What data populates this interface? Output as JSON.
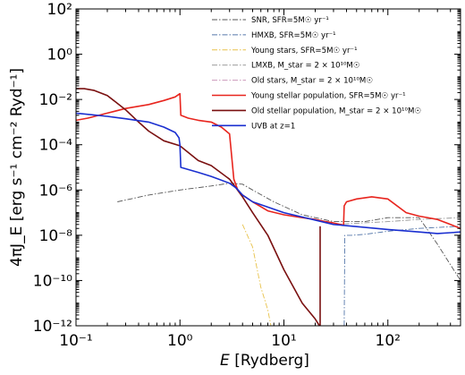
{
  "chart_data": {
    "type": "line",
    "xlabel_main": "E",
    "xlabel_unit": "[Rydberg]",
    "ylabel": "4πJ_E [erg s⁻¹ cm⁻² Ryd⁻¹]",
    "xscale": "log",
    "yscale": "log",
    "xlim": [
      0.1,
      500
    ],
    "ylim": [
      1e-12,
      100
    ],
    "grid": false,
    "legend_position": "top-right",
    "x_tick_labels": [
      {
        "value": 0.1,
        "label": "10⁻¹"
      },
      {
        "value": 1,
        "label": "10⁰"
      },
      {
        "value": 10,
        "label": "10¹"
      },
      {
        "value": 100,
        "label": "10²"
      }
    ],
    "y_tick_labels": [
      {
        "value": 1e-12,
        "label": "10⁻¹²"
      },
      {
        "value": 1e-10,
        "label": "10⁻¹⁰"
      },
      {
        "value": 1e-08,
        "label": "10⁻⁸"
      },
      {
        "value": 1e-06,
        "label": "10⁻⁶"
      },
      {
        "value": 0.0001,
        "label": "10⁻⁴"
      },
      {
        "value": 0.01,
        "label": "10⁻²"
      },
      {
        "value": 1,
        "label": "10⁰"
      },
      {
        "value": 100,
        "label": "10²"
      }
    ],
    "series": [
      {
        "name": "SNR, SFR=5M☉ yr⁻¹",
        "color": "#555555",
        "dash": "dashdot",
        "x": [
          0.25,
          0.5,
          1.0,
          2.0,
          3.0,
          4.0,
          5.0,
          8.0,
          15.0,
          30.0,
          60.0,
          100.0,
          200.0,
          300.0,
          400.0,
          500.0
        ],
        "y": [
          3e-07,
          6e-07,
          1e-06,
          1.5e-06,
          2e-06,
          1.8e-06,
          1e-06,
          3e-07,
          8e-08,
          4e-08,
          4e-08,
          6e-08,
          6e-08,
          4e-09,
          5e-10,
          1e-10
        ]
      },
      {
        "name": "HMXB, SFR=5M☉ yr⁻¹",
        "color": "#5577aa",
        "dash": "dashdot",
        "x": [
          38,
          38.5,
          45,
          60,
          100,
          200,
          500
        ],
        "y": [
          1e-12,
          1e-08,
          1e-08,
          1.1e-08,
          1.5e-08,
          2e-08,
          2.5e-08
        ]
      },
      {
        "name": "Young stars, SFR=5M☉ yr⁻¹",
        "color": "#e8c24a",
        "dash": "dashdot",
        "x": [
          4.0,
          5.0,
          6.0,
          7.0,
          7.5
        ],
        "y": [
          3e-08,
          3e-09,
          5e-11,
          5e-12,
          1e-12
        ]
      },
      {
        "name": "LMXB, M_star = 2 × 10¹⁰M☉",
        "color": "#999999",
        "dash": "dashdot",
        "x": [
          30,
          100,
          200,
          500
        ],
        "y": [
          3e-08,
          4e-08,
          5e-08,
          6e-08
        ]
      },
      {
        "name": "Old stars, M_star = 2 × 10¹⁰M☉",
        "color": "#cc99bb",
        "dash": "dashdot",
        "x": [],
        "y": []
      },
      {
        "name": "Young stellar population, SFR=5M☉ yr⁻¹",
        "color": "#e8251e",
        "dash": "solid",
        "x": [
          0.1,
          0.13,
          0.2,
          0.3,
          0.5,
          0.7,
          0.9,
          0.98,
          1.0,
          1.02,
          1.2,
          1.5,
          2.0,
          2.5,
          3.0,
          3.3,
          3.6,
          4.0,
          5.0,
          7.0,
          10.0,
          15.0,
          20.0,
          25.0,
          30.0,
          35.0,
          37.5,
          38.0,
          40.0,
          50.0,
          70.0,
          100.0,
          150.0,
          200.0,
          300.0,
          400.0,
          500.0
        ],
        "y": [
          0.0012,
          0.0015,
          0.0025,
          0.004,
          0.006,
          0.009,
          0.013,
          0.017,
          0.018,
          0.002,
          0.0015,
          0.0012,
          0.001,
          0.0006,
          0.0003,
          3e-06,
          1e-06,
          6e-07,
          3e-07,
          1.2e-07,
          8e-08,
          6e-08,
          5e-08,
          4e-08,
          3.5e-08,
          3e-08,
          2.8e-08,
          2e-07,
          3e-07,
          4e-07,
          5e-07,
          4e-07,
          1e-07,
          7e-08,
          5e-08,
          3e-08,
          2e-08
        ]
      },
      {
        "name": "Old stellar population, M_star = 2 × 10¹⁰M☉",
        "color": "#7a1010",
        "dash": "solid",
        "x": [
          0.1,
          0.12,
          0.15,
          0.2,
          0.3,
          0.4,
          0.5,
          0.7,
          1.0,
          1.5,
          2.0,
          3.0,
          4.0,
          5.0,
          7.0,
          10.0,
          15.0,
          20.0,
          22.0
        ],
        "y": [
          0.03,
          0.03,
          0.025,
          0.015,
          0.0035,
          0.001,
          0.0004,
          0.00015,
          9e-05,
          2e-05,
          1.2e-05,
          3e-06,
          5e-07,
          1e-07,
          1e-08,
          3e-10,
          1e-11,
          2e-12,
          1e-12
        ]
      },
      {
        "name": "Old stellar population ionisation edge",
        "color": "#7a1010",
        "dash": "solid",
        "x": [
          22.3,
          22.3
        ],
        "y": [
          1e-12,
          2.5e-08
        ]
      },
      {
        "name": "UVB at z=1",
        "color": "#1a2fd0",
        "dash": "solid",
        "x": [
          0.1,
          0.2,
          0.3,
          0.5,
          0.7,
          0.9,
          0.98,
          1.0,
          1.02,
          1.5,
          2.0,
          3.0,
          3.5,
          4.0,
          5.0,
          10.0,
          30.0,
          100.0,
          200.0,
          300.0,
          400.0,
          500.0
        ],
        "y": [
          0.0025,
          0.0018,
          0.0014,
          0.001,
          0.0006,
          0.00035,
          0.0002,
          0.0001,
          1e-05,
          6e-06,
          4e-06,
          2e-06,
          1.2e-06,
          6e-07,
          3e-07,
          1e-07,
          3e-08,
          1.8e-08,
          1.4e-08,
          1.2e-08,
          1.3e-08,
          1.4e-08
        ]
      }
    ]
  }
}
